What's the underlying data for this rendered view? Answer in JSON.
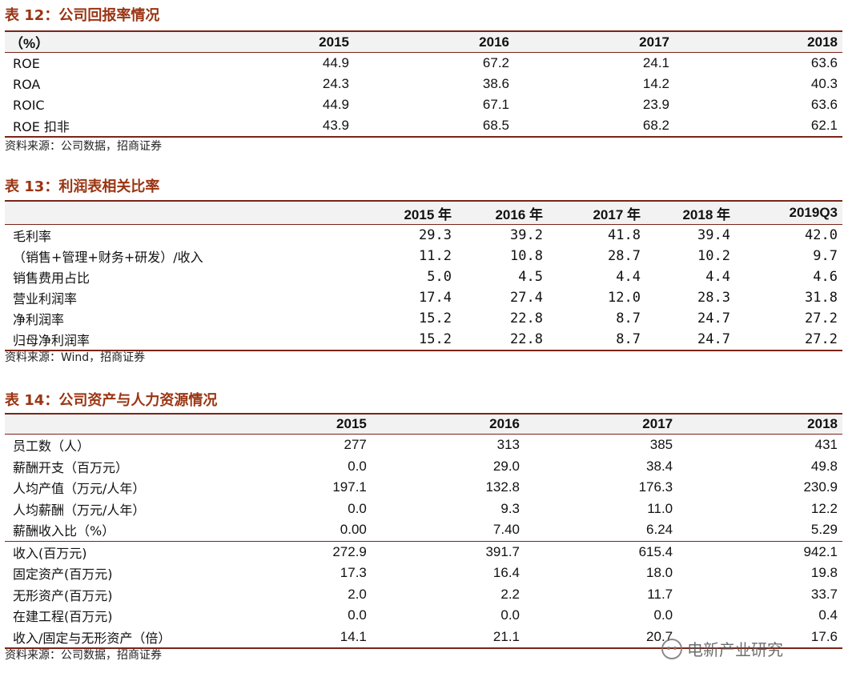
{
  "table12": {
    "title": "表 12：公司回报率情况",
    "header": [
      "（%）",
      "2015",
      "2016",
      "2017",
      "2018"
    ],
    "rows": [
      [
        "ROE",
        "44.9",
        "67.2",
        "24.1",
        "63.6"
      ],
      [
        "ROA",
        "24.3",
        "38.6",
        "14.2",
        "40.3"
      ],
      [
        "ROIC",
        "44.9",
        "67.1",
        "23.9",
        "63.6"
      ],
      [
        "ROE 扣非",
        "43.9",
        "68.5",
        "68.2",
        "62.1"
      ]
    ],
    "source": "资料来源：公司数据，招商证券"
  },
  "table13": {
    "title": "表 13：利润表相关比率",
    "header": [
      "",
      "2015 年",
      "2016 年",
      "2017 年",
      "2018 年",
      "2019Q3"
    ],
    "rows": [
      [
        "毛利率",
        "29.3",
        "39.2",
        "41.8",
        "39.4",
        "42.0"
      ],
      [
        "（销售+管理+财务+研发）/收入",
        "11.2",
        "10.8",
        "28.7",
        "10.2",
        "9.7"
      ],
      [
        "销售费用占比",
        "5.0",
        "4.5",
        "4.4",
        "4.4",
        "4.6"
      ],
      [
        "营业利润率",
        "17.4",
        "27.4",
        "12.0",
        "28.3",
        "31.8"
      ],
      [
        "净利润率",
        "15.2",
        "22.8",
        "8.7",
        "24.7",
        "27.2"
      ],
      [
        "归母净利润率",
        "15.2",
        "22.8",
        "8.7",
        "24.7",
        "27.2"
      ]
    ],
    "source": "资料来源：Wind，招商证券"
  },
  "table14": {
    "title": "表 14：公司资产与人力资源情况",
    "header": [
      "",
      "2015",
      "2016",
      "2017",
      "2018"
    ],
    "rows": [
      [
        "员工数（人）",
        "277",
        "313",
        "385",
        "431"
      ],
      [
        "薪酬开支（百万元）",
        "0.0",
        "29.0",
        "38.4",
        "49.8"
      ],
      [
        "人均产值（万元/人年）",
        "197.1",
        "132.8",
        "176.3",
        "230.9"
      ],
      [
        "人均薪酬（万元/人年）",
        "0.0",
        "9.3",
        "11.0",
        "12.2"
      ],
      [
        "薪酬收入比（%）",
        "0.00",
        "7.40",
        "6.24",
        "5.29"
      ],
      [
        "收入(百万元)",
        "272.9",
        "391.7",
        "615.4",
        "942.1"
      ],
      [
        "固定资产(百万元)",
        "17.3",
        "16.4",
        "18.0",
        "19.8"
      ],
      [
        "无形资产(百万元)",
        "2.0",
        "2.2",
        "11.7",
        "33.7"
      ],
      [
        "在建工程(百万元)",
        "0.0",
        "0.0",
        "0.0",
        "0.4"
      ],
      [
        "收入/固定与无形资产（倍）",
        "14.1",
        "21.1",
        "20.7",
        "17.6"
      ]
    ],
    "source": "资料来源：公司数据，招商证券"
  },
  "watermark": {
    "text": "电新产业研究",
    "icon": "wechat-icon"
  }
}
